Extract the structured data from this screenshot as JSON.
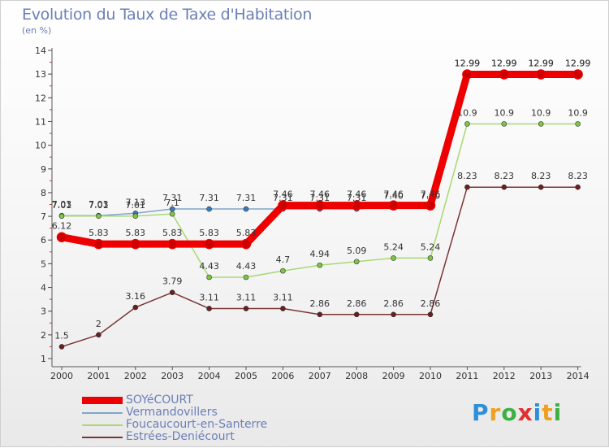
{
  "header": {
    "title": "Evolution du Taux de Taxe d'Habitation",
    "subtitle": "(en %)"
  },
  "logo": {
    "text": "Proxiti",
    "colors": [
      "#2e8fd8",
      "#f0a020",
      "#3cb043",
      "#e03030",
      "#2e8fd8",
      "#f0a020",
      "#3cb043"
    ]
  },
  "chart_data": {
    "type": "line",
    "title": "Evolution du Taux de Taxe d'Habitation",
    "subtitle": "(en %)",
    "x": [
      "2000",
      "2001",
      "2002",
      "2003",
      "2004",
      "2005",
      "2006",
      "2007",
      "2008",
      "2009",
      "2010",
      "2011",
      "2012",
      "2013",
      "2014"
    ],
    "yticks": [
      1,
      2,
      3,
      4,
      5,
      6,
      7,
      8,
      9,
      10,
      11,
      12,
      13,
      14
    ],
    "ylim": [
      1,
      14
    ],
    "grid": false,
    "legend_position": "bottom-left",
    "series": [
      {
        "name": "Vermandovillers",
        "color": "#7fa6c9",
        "marker": "#3a7bbf",
        "values": [
          7.03,
          7.03,
          7.13,
          7.31,
          7.31,
          7.31,
          7.31,
          7.31,
          7.31,
          7.4,
          7.4,
          12.99,
          12.99,
          12.99,
          12.99
        ],
        "labels": [
          "7.03",
          "7.03",
          "7.13",
          "7.31",
          "7.31",
          "7.31",
          "7.31",
          "7.31",
          "7.31",
          "7.40",
          "7.40",
          "12.99",
          "12.99",
          "12.99",
          "12.99"
        ]
      },
      {
        "name": "Foucaucourt-en-Santerre",
        "color": "#a9d873",
        "marker": "#7cc742",
        "values": [
          7.01,
          7.01,
          7.01,
          7.1,
          4.43,
          4.43,
          4.7,
          4.94,
          5.09,
          5.24,
          5.24,
          10.9,
          10.9,
          10.9,
          10.9
        ],
        "labels": [
          "7.01",
          "7.01",
          "7.01",
          "7.1",
          "4.43",
          "4.43",
          "4.7",
          "4.94",
          "5.09",
          "5.24",
          "5.24",
          "10.9",
          "10.9",
          "10.9",
          "10.9"
        ]
      },
      {
        "name": "Estrées-Deniécourt",
        "color": "#7a3535",
        "marker": "#6b1e1e",
        "values": [
          1.5,
          2,
          3.16,
          3.79,
          3.11,
          3.11,
          3.11,
          2.86,
          2.86,
          2.86,
          2.86,
          8.23,
          8.23,
          8.23,
          8.23
        ],
        "labels": [
          "1.5",
          "2",
          "3.16",
          "3.79",
          "3.11",
          "3.11",
          "3.11",
          "2.86",
          "2.86",
          "2.86",
          "2.86",
          "8.23",
          "8.23",
          "8.23",
          "8.23"
        ]
      },
      {
        "name": "SOYéCOURT",
        "color": "#ee0000",
        "marker": "#cc0000",
        "values": [
          6.12,
          5.83,
          5.83,
          5.83,
          5.83,
          5.83,
          7.46,
          7.46,
          7.46,
          7.46,
          7.46,
          12.99,
          12.99,
          12.99,
          12.99
        ],
        "labels": [
          "6.12",
          "5.83",
          "5.83",
          "5.83",
          "5.83",
          "5.83",
          "7.46",
          "7.46",
          "7.46",
          "7.46",
          "7.46",
          "12.99",
          "12.99",
          "12.99",
          "12.99"
        ],
        "thick": true
      }
    ],
    "legend_order": [
      "SOYéCOURT",
      "Vermandovillers",
      "Foucaucourt-en-Santerre",
      "Estrées-Deniécourt"
    ]
  }
}
